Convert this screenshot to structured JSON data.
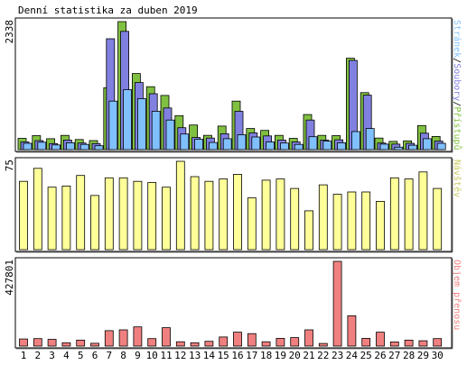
{
  "title": "Denní statistika za duben 2019",
  "colors": {
    "hits": "#80c040",
    "files": "#8080e0",
    "pages": "#80c0ff",
    "visits": "#ffff99",
    "kbytes": "#f08080",
    "weekend_label": "#80c040",
    "frame": "#000000"
  },
  "chart_data": [
    {
      "type": "bar",
      "name": "hits-files-pages",
      "categories": [
        "1",
        "2",
        "3",
        "4",
        "5",
        "6",
        "7",
        "8",
        "9",
        "10",
        "11",
        "12",
        "13",
        "14",
        "15",
        "16",
        "17",
        "18",
        "19",
        "20",
        "21",
        "22",
        "23",
        "24",
        "25",
        "26",
        "27",
        "28",
        "29",
        "30"
      ],
      "weekend_days": [
        "6",
        "7",
        "13",
        "14",
        "20",
        "21",
        "27",
        "28"
      ],
      "ymax_label": "2338",
      "ylim": [
        0,
        2338
      ],
      "legend": [
        "Stránek",
        "Soubory",
        "Přístupů"
      ],
      "series": [
        {
          "name": "Přístupů",
          "color": "#80c040",
          "values": [
            205,
            255,
            200,
            260,
            185,
            165,
            1130,
            2338,
            1390,
            1150,
            990,
            620,
            450,
            260,
            430,
            885,
            385,
            350,
            260,
            205,
            640,
            260,
            255,
            1670,
            1040,
            210,
            150,
            160,
            440,
            240
          ]
        },
        {
          "name": "Soubory",
          "color": "#8080e0",
          "values": [
            140,
            165,
            110,
            175,
            120,
            110,
            2025,
            2160,
            1225,
            1020,
            760,
            400,
            220,
            210,
            290,
            700,
            305,
            250,
            175,
            140,
            540,
            175,
            180,
            1630,
            995,
            120,
            100,
            115,
            300,
            155
          ]
        },
        {
          "name": "Stránek",
          "color": "#80c0ff",
          "values": [
            115,
            135,
            85,
            125,
            95,
            70,
            885,
            1095,
            930,
            700,
            540,
            285,
            190,
            130,
            200,
            270,
            230,
            140,
            120,
            95,
            235,
            155,
            125,
            330,
            385,
            100,
            45,
            80,
            200,
            115
          ]
        }
      ]
    },
    {
      "type": "bar",
      "name": "visits",
      "categories": [
        "1",
        "2",
        "3",
        "4",
        "5",
        "6",
        "7",
        "8",
        "9",
        "10",
        "11",
        "12",
        "13",
        "14",
        "15",
        "16",
        "17",
        "18",
        "19",
        "20",
        "21",
        "22",
        "23",
        "24",
        "25",
        "26",
        "27",
        "28",
        "29",
        "30"
      ],
      "ymax_label": "75",
      "ylim": [
        0,
        75
      ],
      "legend": [
        "Návštěv"
      ],
      "series": [
        {
          "name": "Návštěv",
          "color": "#ffff99",
          "values": [
            58,
            69,
            53,
            54,
            63,
            46,
            61,
            61,
            58,
            57,
            53,
            75,
            62,
            58,
            60,
            64,
            44,
            59,
            60,
            52,
            33,
            55,
            47,
            49,
            49,
            41,
            61,
            60,
            66,
            52
          ]
        }
      ]
    },
    {
      "type": "bar",
      "name": "kbytes",
      "categories": [
        "1",
        "2",
        "3",
        "4",
        "5",
        "6",
        "7",
        "8",
        "9",
        "10",
        "11",
        "12",
        "13",
        "14",
        "15",
        "16",
        "17",
        "18",
        "19",
        "20",
        "21",
        "22",
        "23",
        "24",
        "25",
        "26",
        "27",
        "28",
        "29",
        "30"
      ],
      "ymax_label": "427801",
      "ylim": [
        0,
        427801
      ],
      "legend": [
        "Objem přenosu"
      ],
      "series": [
        {
          "name": "Objem přenosu",
          "color": "#f08080",
          "values": [
            36000,
            38000,
            34000,
            17000,
            30000,
            14000,
            78000,
            82000,
            97000,
            38000,
            93000,
            22000,
            17000,
            24000,
            46000,
            70000,
            63000,
            22000,
            39000,
            43000,
            82000,
            13000,
            427801,
            153000,
            39000,
            70000,
            21000,
            30000,
            27000,
            38000
          ]
        }
      ]
    }
  ]
}
